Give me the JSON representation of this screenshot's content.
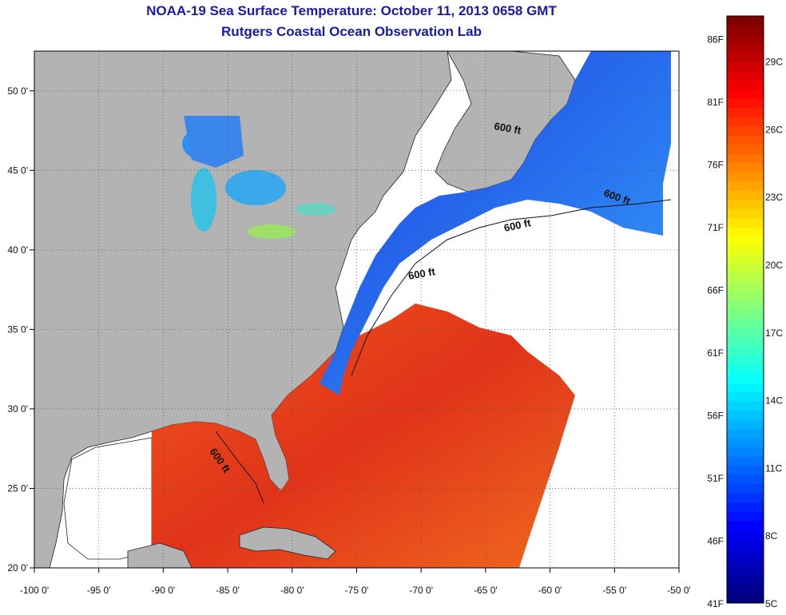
{
  "header": {
    "title": "NOAA-19 Sea Surface Temperature:  October 11, 2013 0658 GMT",
    "subtitle": "Rutgers Coastal Ocean Observation Lab"
  },
  "map": {
    "lon_range": [
      -100,
      -50
    ],
    "lat_range": [
      20,
      52.5
    ],
    "x_ticks": [
      {
        "value": -100,
        "label": "-100 0'"
      },
      {
        "value": -95,
        "label": "-95 0'"
      },
      {
        "value": -90,
        "label": "-90 0'"
      },
      {
        "value": -85,
        "label": "-85 0'"
      },
      {
        "value": -80,
        "label": "-80 0'"
      },
      {
        "value": -75,
        "label": "-75 0'"
      },
      {
        "value": -70,
        "label": "-70 0'"
      },
      {
        "value": -65,
        "label": "-65 0'"
      },
      {
        "value": -60,
        "label": "-60 0'"
      },
      {
        "value": -55,
        "label": "-55 0'"
      },
      {
        "value": -50,
        "label": "-50 0'"
      }
    ],
    "y_ticks": [
      {
        "value": 20,
        "label": "20 0'"
      },
      {
        "value": 25,
        "label": "25 0'"
      },
      {
        "value": 30,
        "label": "30 0'"
      },
      {
        "value": 35,
        "label": "35 0'"
      },
      {
        "value": 40,
        "label": "40 0'"
      },
      {
        "value": 45,
        "label": "45 0'"
      },
      {
        "value": 50,
        "label": "50 0'"
      }
    ],
    "contour_labels": [
      "600 ft",
      "600 ft",
      "600 ft",
      "600 ft",
      "600 ft"
    ],
    "colors": {
      "land": "#b3b3b3",
      "ocean_cloud": "#ffffff",
      "cold_water": "#1f4fe6",
      "warm_water": "#e8401a",
      "grid": "#555555"
    }
  },
  "colorbar": {
    "fahrenheit_labels": [
      "86F",
      "81F",
      "76F",
      "71F",
      "66F",
      "61F",
      "56F",
      "51F",
      "46F",
      "41F"
    ],
    "celsius_labels": [
      "29C",
      "26C",
      "23C",
      "20C",
      "17C",
      "14C",
      "11C",
      "8C",
      "5C"
    ],
    "range_c": [
      5,
      31
    ],
    "colormap": "jet"
  }
}
